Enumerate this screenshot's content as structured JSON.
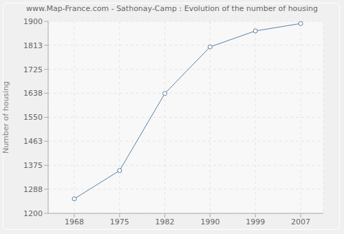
{
  "chart_data": {
    "type": "line",
    "title": "www.Map-France.com - Sathonay-Camp : Evolution of the number of housing",
    "y_label": "Number of housing",
    "categories": [
      "1968",
      "1975",
      "1982",
      "1990",
      "1999",
      "2007"
    ],
    "values": [
      1253,
      1356,
      1637,
      1807,
      1865,
      1892
    ],
    "color": "#5b7fa6",
    "marker": "circle",
    "ylim": [
      1200,
      1900
    ],
    "yticks": [
      1200,
      1288,
      1375,
      1463,
      1550,
      1638,
      1725,
      1813,
      1900
    ],
    "grid": true
  }
}
